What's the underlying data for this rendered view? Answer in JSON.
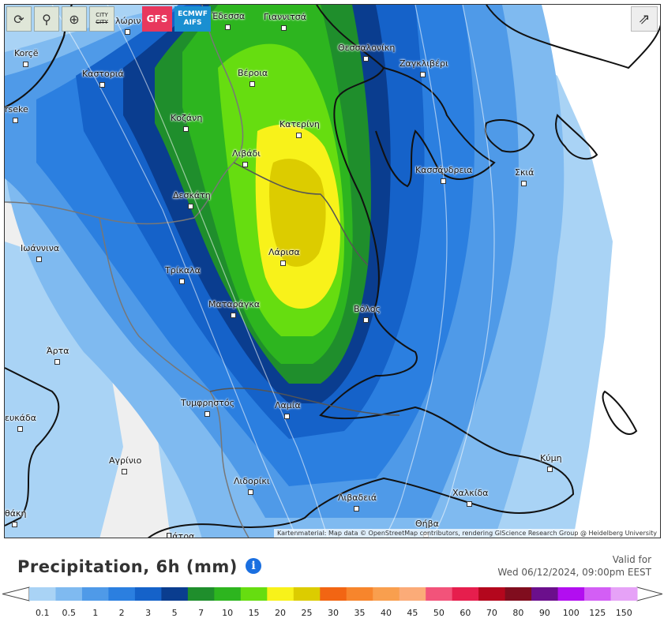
{
  "toolbar": {
    "buttons": [
      {
        "name": "refresh-icon",
        "glyph": "⟳"
      },
      {
        "name": "location-pin-icon",
        "glyph": "⚲"
      },
      {
        "name": "zoom-icon",
        "glyph": "⊕"
      }
    ],
    "city_toggle": {
      "line1": "CITY",
      "line2": "CITY"
    },
    "models": {
      "gfs": "GFS",
      "ecmwf_line1": "ECMWF",
      "ecmwf_line2": "AIFS"
    },
    "share_glyph": "⇗"
  },
  "map": {
    "attribution": "Kartenmaterial: Map data © OpenStreetMap contributors, rendering GIScience Research Group @ Heidelberg University",
    "cities": [
      {
        "name": "Έδεσσα"
      },
      {
        "name": "Γιαννιτσά"
      },
      {
        "name": "Φλώρινα",
        "shown": "λώριν"
      },
      {
        "name": "Korçë"
      },
      {
        "name": "Θεσσαλονίκη"
      },
      {
        "name": "Καστοριά"
      },
      {
        "name": "Βέροια"
      },
      {
        "name": "Ζαγκλιβέρι"
      },
      {
        "name": "rseke"
      },
      {
        "name": "Κοζάνη"
      },
      {
        "name": "Κατερίνη"
      },
      {
        "name": "Λιβάδι"
      },
      {
        "name": "Κασσάνδρεια"
      },
      {
        "name": "Σκιάθος",
        "shown": "Σκιά"
      },
      {
        "name": "Δεσκάτη"
      },
      {
        "name": "Ιωάννινα"
      },
      {
        "name": "Λάρισα"
      },
      {
        "name": "Τρίκαλα"
      },
      {
        "name": "Ματαράγκα"
      },
      {
        "name": "Βόλος"
      },
      {
        "name": "Άρτα"
      },
      {
        "name": "Τυμφρηστός"
      },
      {
        "name": "Λαμία"
      },
      {
        "name": "Λευκάδα",
        "shown": "ευκάδα"
      },
      {
        "name": "Αγρίνιο"
      },
      {
        "name": "Κύμη"
      },
      {
        "name": "Λιδορίκι"
      },
      {
        "name": "Χαλκίδα"
      },
      {
        "name": "Λιβαδειά"
      },
      {
        "name": "Θήβα"
      },
      {
        "name": "Ιθάκη",
        "shown": "θάκη"
      },
      {
        "name": "Πάτρα"
      }
    ]
  },
  "legend": {
    "title": "Precipitation, 6h (mm)",
    "info_glyph": "i",
    "valid_label": "Valid for",
    "valid_time": "Wed 06/12/2024, 09:00pm EEST",
    "unit": "mm",
    "bins": [
      {
        "value": "0.1",
        "color": "#a9d3f5"
      },
      {
        "value": "0.5",
        "color": "#7fbaf0"
      },
      {
        "value": "1",
        "color": "#4f9ae8"
      },
      {
        "value": "2",
        "color": "#2b7fe0"
      },
      {
        "value": "3",
        "color": "#1562c9"
      },
      {
        "value": "5",
        "color": "#0a3d8f"
      },
      {
        "value": "7",
        "color": "#1f8e2c"
      },
      {
        "value": "10",
        "color": "#2db51f"
      },
      {
        "value": "15",
        "color": "#66dd10"
      },
      {
        "value": "20",
        "color": "#f8f21a"
      },
      {
        "value": "25",
        "color": "#dccc00"
      },
      {
        "value": "30",
        "color": "#f26513"
      },
      {
        "value": "35",
        "color": "#f7852c"
      },
      {
        "value": "40",
        "color": "#f99f4e"
      },
      {
        "value": "45",
        "color": "#fbab78"
      },
      {
        "value": "50",
        "color": "#f2537a"
      },
      {
        "value": "60",
        "color": "#e61e4d"
      },
      {
        "value": "70",
        "color": "#b4071d"
      },
      {
        "value": "80",
        "color": "#800d1e"
      },
      {
        "value": "90",
        "color": "#6b0f8c"
      },
      {
        "value": "100",
        "color": "#b20ef0"
      },
      {
        "value": "125",
        "color": "#d35ef5"
      },
      {
        "value": "150",
        "color": "#e6a2f7"
      }
    ]
  }
}
